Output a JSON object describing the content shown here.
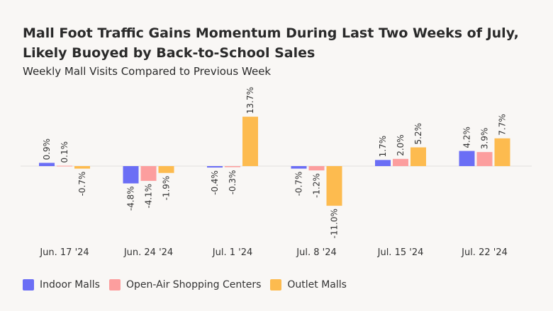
{
  "header": {
    "title": "Mall Foot Traffic Gains Momentum During Last Two Weeks of July, Likely Buoyed by Back-to-School Sales",
    "subtitle": "Weekly Mall Visits Compared to Previous Week"
  },
  "chart_data": {
    "type": "bar",
    "title": "Mall Foot Traffic Gains Momentum During Last Two Weeks of July, Likely Buoyed by Back-to-School Sales",
    "subtitle": "Weekly Mall Visits Compared to Previous Week",
    "categories": [
      "Jun. 17 '24",
      "Jun. 24 '24",
      "Jul. 1 '24",
      "Jul. 8 '24",
      "Jul. 15 '24",
      "Jul. 22 '24"
    ],
    "series": [
      {
        "name": "Indoor Malls",
        "color": "#6b6ef5",
        "values": [
          0.9,
          -4.8,
          -0.4,
          -0.7,
          1.7,
          4.2
        ],
        "labels": [
          "0.9%",
          "-4.8%",
          "-0.4%",
          "-0.7%",
          "1.7%",
          "4.2%"
        ]
      },
      {
        "name": "Open-Air Shopping Centers",
        "color": "#fc9e9e",
        "values": [
          0.1,
          -4.1,
          -0.3,
          -1.2,
          2.0,
          3.9
        ],
        "labels": [
          "0.1%",
          "-4.1%",
          "-0.3%",
          "-1.2%",
          "2.0%",
          "3.9%"
        ]
      },
      {
        "name": "Outlet Malls",
        "color": "#fdbb4f",
        "values": [
          -0.7,
          -1.9,
          13.7,
          -11.0,
          5.2,
          7.7
        ],
        "labels": [
          "-0.7%",
          "-1.9%",
          "13.7%",
          "-11.0%",
          "5.2%",
          "7.7%"
        ]
      }
    ],
    "ylim": [
      -11.5,
      14
    ],
    "grid": false,
    "legend_position": "bottom-left"
  }
}
